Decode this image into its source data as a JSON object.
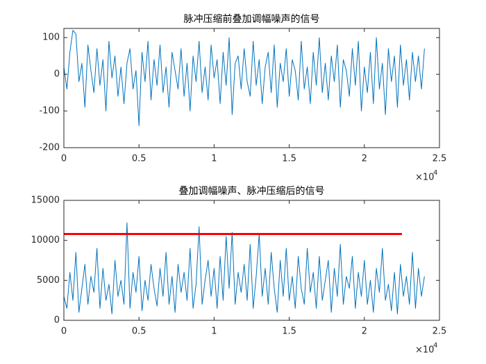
{
  "chart_data": [
    {
      "type": "line",
      "title": "脉冲压缩前叠加调幅噪声的信号",
      "xlim": [
        0,
        25000
      ],
      "ylim": [
        -200,
        125
      ],
      "xticks": [
        0,
        {
          "value": 5000,
          "label": "0.5"
        },
        {
          "value": 10000,
          "label": "1"
        },
        {
          "value": 15000,
          "label": "1.5"
        },
        {
          "value": 20000,
          "label": "2"
        },
        {
          "value": 25000,
          "label": "2.5"
        }
      ],
      "yticks": [
        -200,
        -100,
        0,
        100
      ],
      "x_multiplier": {
        "base": "×10",
        "exponent": "4"
      },
      "series": [
        {
          "color": "#0072bd",
          "width": 1,
          "x": [
            0,
            200,
            400,
            600,
            800,
            1000,
            1200,
            1400,
            1600,
            1800,
            2000,
            2200,
            2400,
            2600,
            2800,
            3000,
            3200,
            3400,
            3600,
            3800,
            4000,
            4200,
            4400,
            4600,
            4800,
            5000,
            5200,
            5400,
            5600,
            5800,
            6000,
            6200,
            6400,
            6600,
            6800,
            7000,
            7200,
            7400,
            7600,
            7800,
            8000,
            8200,
            8400,
            8600,
            8800,
            9000,
            9200,
            9400,
            9600,
            9800,
            10000,
            10200,
            10400,
            10600,
            10800,
            11000,
            11200,
            11400,
            11600,
            11800,
            12000,
            12200,
            12400,
            12600,
            12800,
            13000,
            13200,
            13400,
            13600,
            13800,
            14000,
            14200,
            14400,
            14600,
            14800,
            15000,
            15200,
            15400,
            15600,
            15800,
            16000,
            16200,
            16400,
            16600,
            16800,
            17000,
            17200,
            17400,
            17600,
            17800,
            18000,
            18200,
            18400,
            18600,
            18800,
            19000,
            19200,
            19400,
            19600,
            19800,
            20000,
            20200,
            20400,
            20600,
            20800,
            21000,
            21200,
            21400,
            21600,
            21800,
            22000,
            22200,
            22400,
            22600,
            22800,
            23000,
            23200,
            23400,
            23600,
            23800,
            24000
          ],
          "values": [
            20,
            -40,
            60,
            120,
            110,
            -20,
            30,
            -90,
            80,
            10,
            -50,
            70,
            -30,
            40,
            -100,
            90,
            -10,
            50,
            -60,
            20,
            -80,
            30,
            70,
            -40,
            10,
            -140,
            60,
            -20,
            90,
            -70,
            40,
            -30,
            80,
            -50,
            20,
            -90,
            60,
            10,
            -40,
            70,
            -60,
            30,
            -100,
            50,
            -20,
            90,
            -50,
            20,
            -70,
            80,
            -10,
            40,
            -80,
            60,
            -30,
            100,
            -110,
            30,
            50,
            -40,
            70,
            -20,
            -60,
            90,
            -30,
            40,
            -80,
            20,
            60,
            -50,
            80,
            -90,
            30,
            -20,
            70,
            -60,
            40,
            10,
            -70,
            90,
            -40,
            20,
            -80,
            60,
            -30,
            100,
            -50,
            30,
            -70,
            50,
            -20,
            80,
            -90,
            40,
            10,
            -60,
            70,
            -30,
            90,
            -100,
            20,
            -50,
            60,
            -80,
            100,
            -40,
            30,
            -110,
            70,
            -20,
            50,
            -90,
            80,
            -30,
            40,
            -70,
            60,
            -20,
            50,
            -40,
            70
          ]
        }
      ]
    },
    {
      "type": "line",
      "title": "叠加调幅噪声、脉冲压缩后的信号",
      "xlim": [
        0,
        25000
      ],
      "ylim": [
        0,
        15000
      ],
      "xticks": [
        0,
        {
          "value": 5000,
          "label": "0.5"
        },
        {
          "value": 10000,
          "label": "1"
        },
        {
          "value": 15000,
          "label": "1.5"
        },
        {
          "value": 20000,
          "label": "2"
        },
        {
          "value": 25000,
          "label": "2.5"
        }
      ],
      "yticks": [
        0,
        5000,
        10000,
        15000
      ],
      "x_multiplier": {
        "base": "×10",
        "exponent": "4"
      },
      "series": [
        {
          "color": "#0072bd",
          "width": 1,
          "x": [
            0,
            200,
            400,
            600,
            800,
            1000,
            1200,
            1400,
            1600,
            1800,
            2000,
            2200,
            2400,
            2600,
            2800,
            3000,
            3200,
            3400,
            3600,
            3800,
            4000,
            4200,
            4400,
            4600,
            4800,
            5000,
            5200,
            5400,
            5600,
            5800,
            6000,
            6200,
            6400,
            6600,
            6800,
            7000,
            7200,
            7400,
            7600,
            7800,
            8000,
            8200,
            8400,
            8600,
            8800,
            9000,
            9200,
            9400,
            9600,
            9800,
            10000,
            10200,
            10400,
            10600,
            10800,
            11000,
            11200,
            11400,
            11600,
            11800,
            12000,
            12200,
            12400,
            12600,
            12800,
            13000,
            13200,
            13400,
            13600,
            13800,
            14000,
            14200,
            14400,
            14600,
            14800,
            15000,
            15200,
            15400,
            15600,
            15800,
            16000,
            16200,
            16400,
            16600,
            16800,
            17000,
            17200,
            17400,
            17600,
            17800,
            18000,
            18200,
            18400,
            18600,
            18800,
            19000,
            19200,
            19400,
            19600,
            19800,
            20000,
            20200,
            20400,
            20600,
            20800,
            21000,
            21200,
            21400,
            21600,
            21800,
            22000,
            22200,
            22400,
            22600,
            22800,
            23000,
            23200,
            23400,
            23600,
            23800,
            24000
          ],
          "values": [
            3000,
            1500,
            6000,
            2500,
            8500,
            1000,
            4000,
            7000,
            2000,
            5500,
            3500,
            9000,
            1500,
            6500,
            2500,
            4500,
            800,
            7500,
            3000,
            5000,
            2000,
            12200,
            1500,
            6000,
            3500,
            8000,
            1200,
            5000,
            2500,
            7000,
            4000,
            1800,
            6500,
            3000,
            8500,
            2000,
            5500,
            1000,
            7000,
            3500,
            6000,
            2500,
            9000,
            1500,
            4500,
            11700,
            2000,
            5000,
            7500,
            3000,
            6500,
            1500,
            8000,
            2500,
            10500,
            4000,
            11000,
            2000,
            6000,
            3500,
            7000,
            2500,
            9500,
            1500,
            5500,
            10800,
            3000,
            6500,
            2000,
            8500,
            4000,
            1000,
            7500,
            3000,
            9000,
            2500,
            5500,
            1500,
            8000,
            4000,
            2000,
            9000,
            3500,
            6000,
            1500,
            8000,
            2500,
            5000,
            7500,
            1000,
            6500,
            3000,
            9500,
            2000,
            5500,
            4000,
            8000,
            1500,
            6000,
            3000,
            7500,
            2000,
            5000,
            1000,
            6500,
            3500,
            9000,
            2500,
            4500,
            1200,
            6000,
            800,
            7000,
            3000,
            5500,
            2000,
            8500,
            1500,
            6500,
            3000,
            5500
          ]
        },
        {
          "color": "#ff0000",
          "width": 3,
          "x": [
            0,
            22500
          ],
          "values": [
            10800,
            10800
          ]
        }
      ]
    }
  ]
}
